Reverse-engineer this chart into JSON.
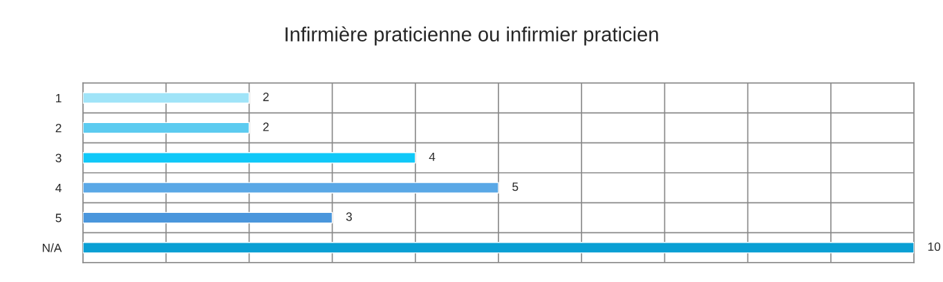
{
  "chart_data": {
    "type": "bar",
    "orientation": "horizontal",
    "title": "Infirmière praticienne ou infirmier praticien",
    "categories": [
      "1",
      "2",
      "3",
      "4",
      "5",
      "N/A"
    ],
    "values": [
      2,
      2,
      4,
      5,
      3,
      10
    ],
    "colors": [
      "#a0e4f8",
      "#5ccbf0",
      "#10c8f8",
      "#5aa8e6",
      "#4a96dc",
      "#0a9fd4"
    ],
    "xlim": [
      0,
      10
    ],
    "xticks": [
      {
        "value": 0,
        "label": null
      },
      {
        "value": 1,
        "label": null
      },
      {
        "value": 2,
        "label": null
      },
      {
        "value": 3,
        "label": null
      },
      {
        "value": 4,
        "label": null
      },
      {
        "value": 5,
        "label": null
      },
      {
        "value": 6,
        "label": null
      },
      {
        "value": 7,
        "label": null
      },
      {
        "value": 8,
        "label": null
      },
      {
        "value": 9,
        "label": null
      },
      {
        "value": 10,
        "label": null
      }
    ],
    "tick_labels": "y",
    "grid": true,
    "data_labels": true
  }
}
